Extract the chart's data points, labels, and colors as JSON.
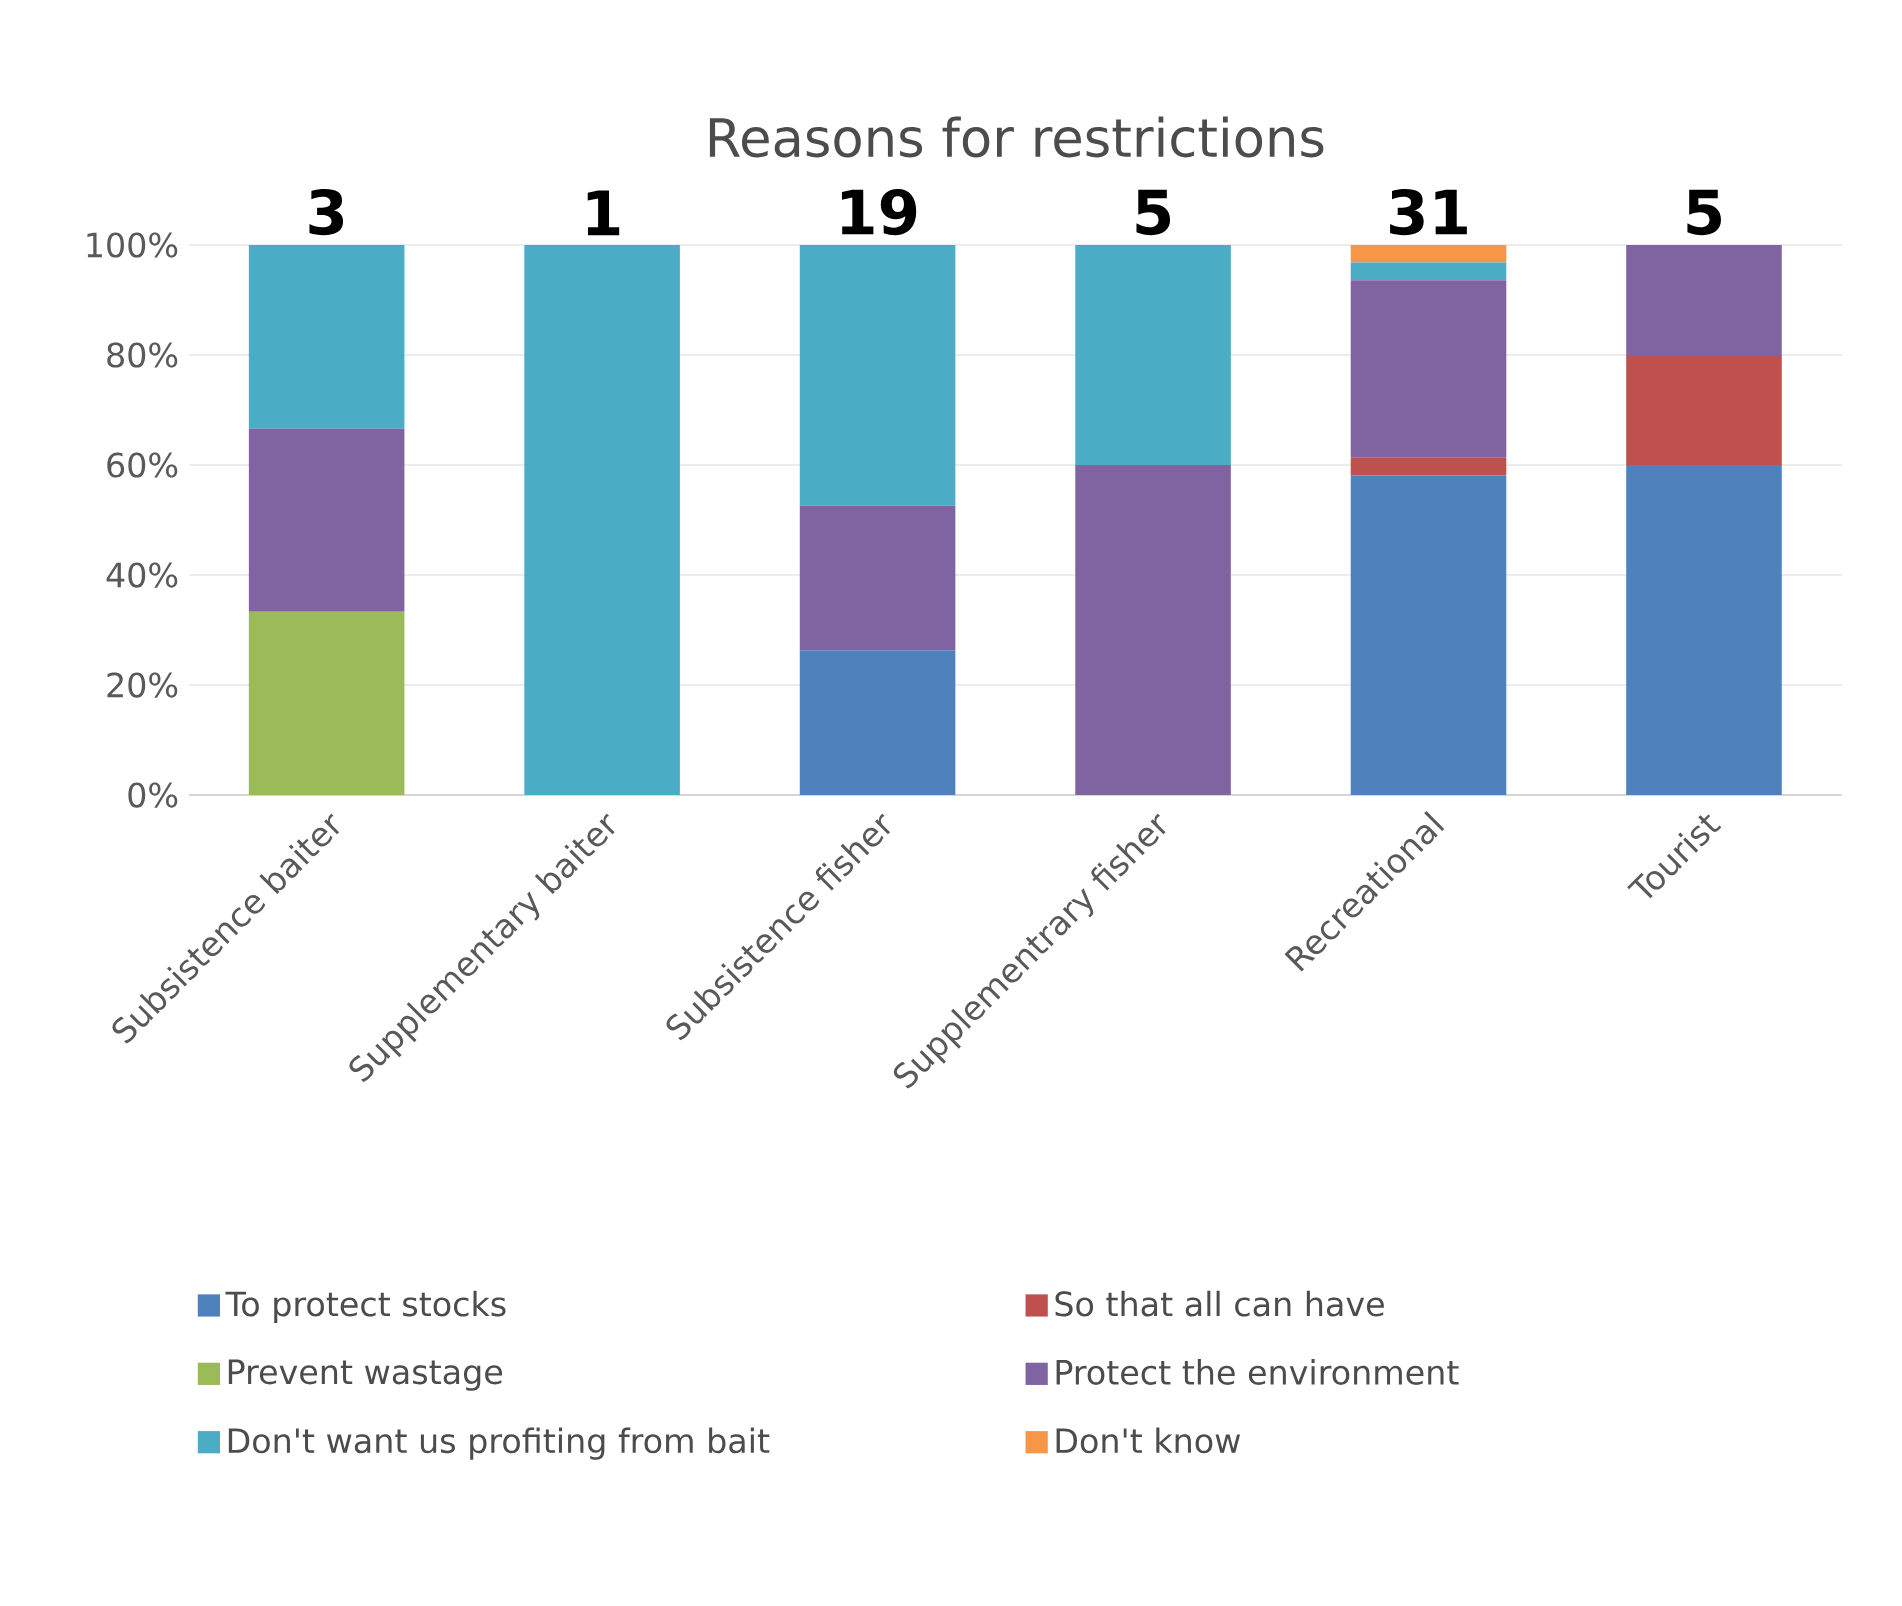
{
  "chart_data": {
    "type": "bar",
    "title": "Reasons for restrictions",
    "stacked": true,
    "categories": [
      "Subsistence baiter",
      "Supplementary baiter",
      "Subsistence fisher",
      "Supplementrary fisher",
      "Recreational",
      "Tourist"
    ],
    "series": [
      {
        "name": "To protect stocks",
        "color": "#4f81bd",
        "values": [
          0,
          0,
          26.3,
          0,
          58.1,
          60
        ]
      },
      {
        "name": "So that all can have",
        "color": "#c0504d",
        "values": [
          0,
          0,
          0,
          0,
          3.2,
          20
        ]
      },
      {
        "name": "Prevent wastage",
        "color": "#9bbb59",
        "values": [
          33.3,
          0,
          0,
          0,
          0,
          0
        ]
      },
      {
        "name": "Protect the environment",
        "color": "#8064a2",
        "values": [
          33.3,
          0,
          26.3,
          60,
          32.3,
          20
        ]
      },
      {
        "name": "Don't want us profiting from bait",
        "color": "#4bacc6",
        "values": [
          33.4,
          100,
          47.4,
          40,
          3.2,
          0
        ]
      },
      {
        "name": "Don't know",
        "color": "#f79646",
        "values": [
          0,
          0,
          0,
          0,
          3.2,
          0
        ]
      }
    ],
    "annotations": [
      "3",
      "1",
      "19",
      "5",
      "31",
      "5"
    ],
    "ylim": [
      0,
      100
    ],
    "yticks": [
      {
        "value": 0,
        "label": "0%"
      },
      {
        "value": 20,
        "label": "20%"
      },
      {
        "value": 40,
        "label": "40%"
      },
      {
        "value": 60,
        "label": "60%"
      },
      {
        "value": 80,
        "label": "80%"
      },
      {
        "value": 100,
        "label": "100%"
      }
    ],
    "grid": "y",
    "legend": "bottom"
  }
}
